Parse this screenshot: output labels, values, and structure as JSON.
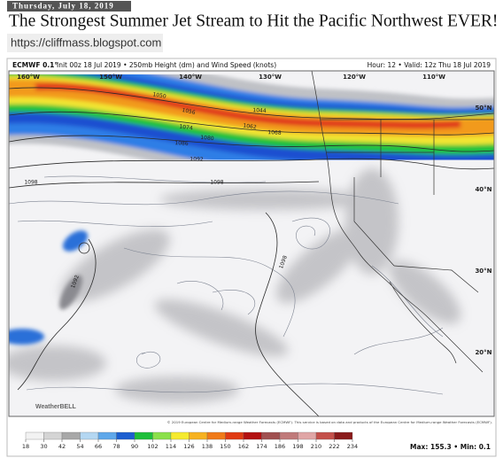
{
  "header": {
    "date": "Thursday, July 18, 2019",
    "title": "The Strongest Summer Jet Stream to Hit the Pacific Northwest EVER!",
    "url": "https://cliffmass.blogspot.com"
  },
  "map": {
    "model": "ECMWF 0.1°",
    "description": "Init 00z 18 Jul 2019 • 250mb Height (dm) and Wind Speed (knots)",
    "valid": "Hour: 12 • Valid: 12z Thu 18 Jul 2019",
    "longitudes": [
      "160°W",
      "150°W",
      "140°W",
      "130°W",
      "120°W",
      "110°W"
    ],
    "latitudes": [
      "50°N",
      "40°N",
      "30°N",
      "20°N"
    ],
    "contour_labels": [
      1050,
      1056,
      1074,
      1080,
      1086,
      1092,
      1044,
      1062,
      1068,
      1098,
      1098,
      1098,
      1092
    ],
    "copyright": "© 2019 European Centre for Medium-range Weather Forecasts (ECMWF). This service is based on data and products of the European Centre for Medium-range Weather Forecasts (ECMWF).",
    "logo": "WeatherBELL"
  },
  "colorbar": {
    "ticks": [
      18,
      30,
      42,
      54,
      66,
      78,
      90,
      102,
      114,
      126,
      138,
      150,
      162,
      174,
      186,
      198,
      210,
      222,
      234
    ],
    "colors": [
      "#f2f2f2",
      "#d4d4d4",
      "#a8a8a8",
      "#b4d7f2",
      "#5fa8ea",
      "#1c5fd0",
      "#1dbf3a",
      "#8be04a",
      "#f5ea2e",
      "#f7b21f",
      "#f07a17",
      "#e03a12",
      "#b31010",
      "#a05050",
      "#c07a7a",
      "#e0a6a6",
      "#c4504a",
      "#8a1a1a"
    ],
    "stats": "Max: 155.3 • Min: 0.1"
  }
}
